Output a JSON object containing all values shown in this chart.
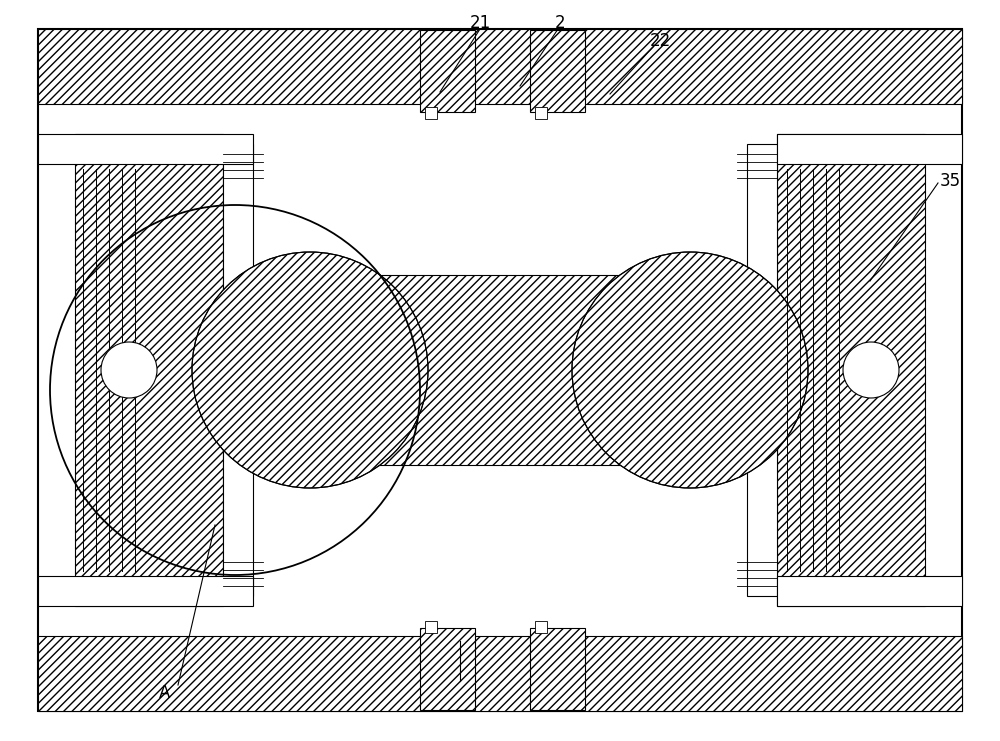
{
  "bg_color": "#ffffff",
  "line_color": "#000000",
  "fig_w": 10.0,
  "fig_h": 7.41,
  "dpi": 100
}
